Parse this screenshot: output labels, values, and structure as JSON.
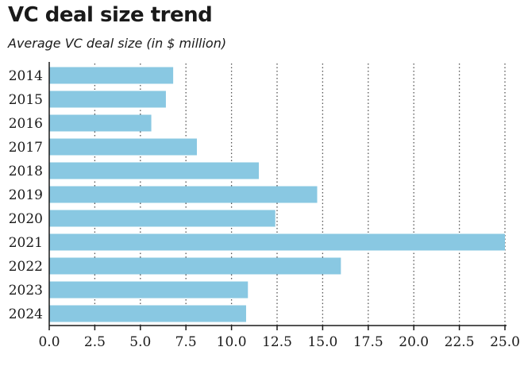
{
  "chart_data": {
    "type": "bar",
    "orientation": "horizontal",
    "title": "VC deal size trend",
    "subtitle": "Average VC deal size (in $ million)",
    "categories": [
      "2014",
      "2015",
      "2016",
      "2017",
      "2018",
      "2019",
      "2020",
      "2021",
      "2022",
      "2023",
      "2024"
    ],
    "values": [
      6.8,
      6.4,
      5.6,
      8.1,
      11.5,
      14.7,
      12.4,
      25.0,
      16.0,
      10.9,
      10.8
    ],
    "xlim": [
      0,
      25
    ],
    "xticks": [
      "0.0",
      "2.5",
      "5.0",
      "7.5",
      "10.0",
      "12.5",
      "15.0",
      "17.5",
      "20.0",
      "22.5",
      "25.0"
    ],
    "tick_values": [
      0,
      2.5,
      5,
      7.5,
      10,
      12.5,
      15,
      17.5,
      20,
      22.5,
      25
    ],
    "grid": "vertical dotted",
    "bar_color": "#89c8e2",
    "axis_color": "#1a1a1a",
    "grid_color": "#555555"
  }
}
